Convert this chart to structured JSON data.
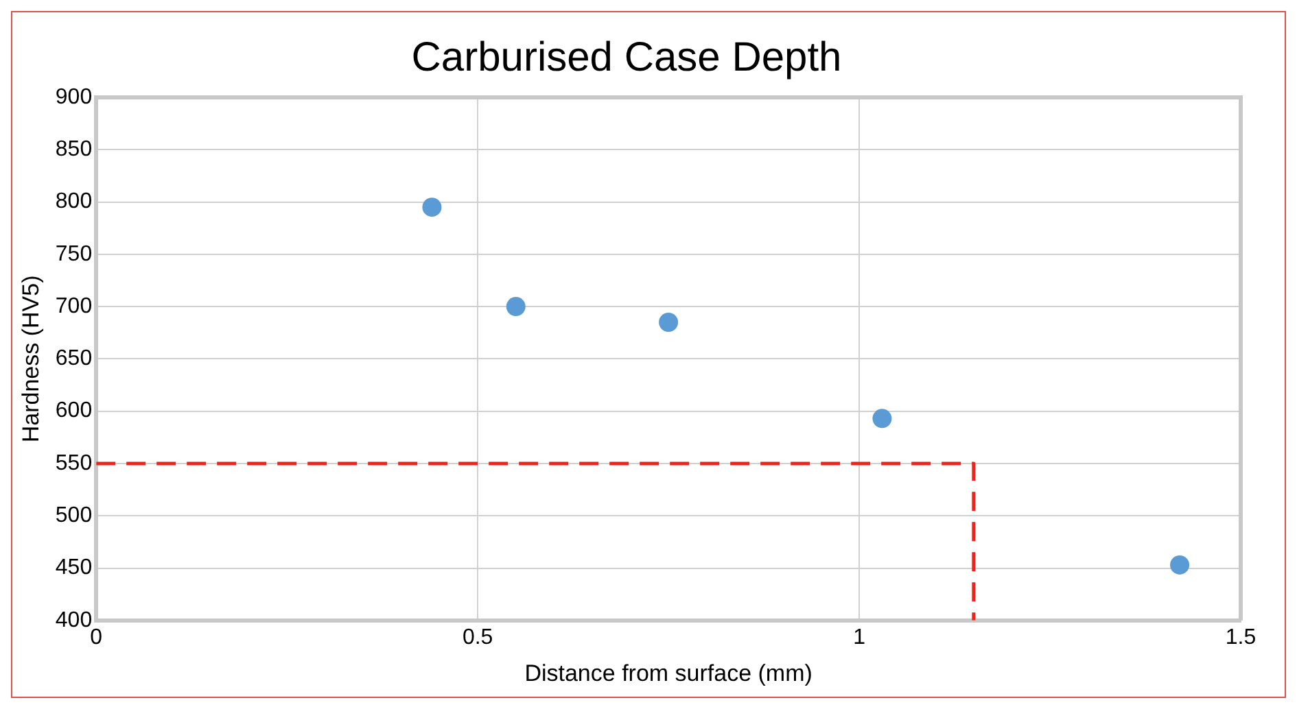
{
  "chart_data": {
    "type": "scatter",
    "title": "Carburised Case Depth",
    "xlabel": "Distance from surface (mm)",
    "ylabel": "Hardness (HV5)",
    "xlim": [
      0,
      1.5
    ],
    "xticks": [
      0,
      0.5,
      1,
      1.5
    ],
    "ylim": [
      400,
      900
    ],
    "yticks": [
      400,
      450,
      500,
      550,
      600,
      650,
      700,
      750,
      800,
      850,
      900
    ],
    "grid": true,
    "marker": "circle",
    "series": [
      {
        "type": "scatter",
        "color": "#5b9bd5",
        "x": [
          0.44,
          0.55,
          0.75,
          1.03,
          1.42
        ],
        "values": [
          795,
          700,
          685,
          593,
          453
        ]
      },
      {
        "type": "line",
        "color": "#e8261c",
        "line_style": "dashed",
        "marker": "none",
        "x": [
          0,
          1.15,
          1.15
        ],
        "values": [
          550,
          550,
          400
        ]
      }
    ]
  }
}
